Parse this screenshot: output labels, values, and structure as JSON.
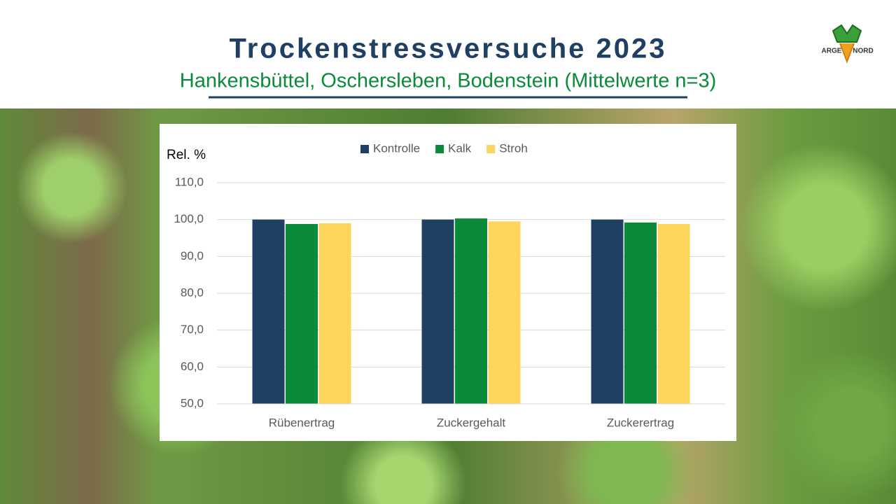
{
  "chart_data": {
    "type": "bar",
    "title": "Trockenstressversuche 2023",
    "subtitle": "Hankensbüttel, Oschersleben, Bodenstein (Mittelwerte n=3)",
    "ylabel": "Rel. %",
    "categories": [
      "Rübenertrag",
      "Zuckergehalt",
      "Zuckerertrag"
    ],
    "series": [
      {
        "name": "Kontrolle",
        "color": "#1f3f63",
        "values": [
          100.0,
          100.0,
          100.0
        ]
      },
      {
        "name": "Kalk",
        "color": "#0b8a3a",
        "values": [
          98.8,
          100.3,
          99.2
        ]
      },
      {
        "name": "Stroh",
        "color": "#fdd55c",
        "values": [
          99.0,
          99.5,
          98.8
        ]
      }
    ],
    "ylim": [
      50,
      110
    ],
    "yticks": [
      {
        "value": 50,
        "label": "50,0"
      },
      {
        "value": 60,
        "label": "60,0"
      },
      {
        "value": 70,
        "label": "70,0"
      },
      {
        "value": 80,
        "label": "80,0"
      },
      {
        "value": 90,
        "label": "90,0"
      },
      {
        "value": 100,
        "label": "100,0"
      },
      {
        "value": 110,
        "label": "110,0"
      }
    ],
    "grid": true,
    "legend": "top"
  },
  "logo": {
    "left": "ARGE",
    "right": "NORD"
  }
}
